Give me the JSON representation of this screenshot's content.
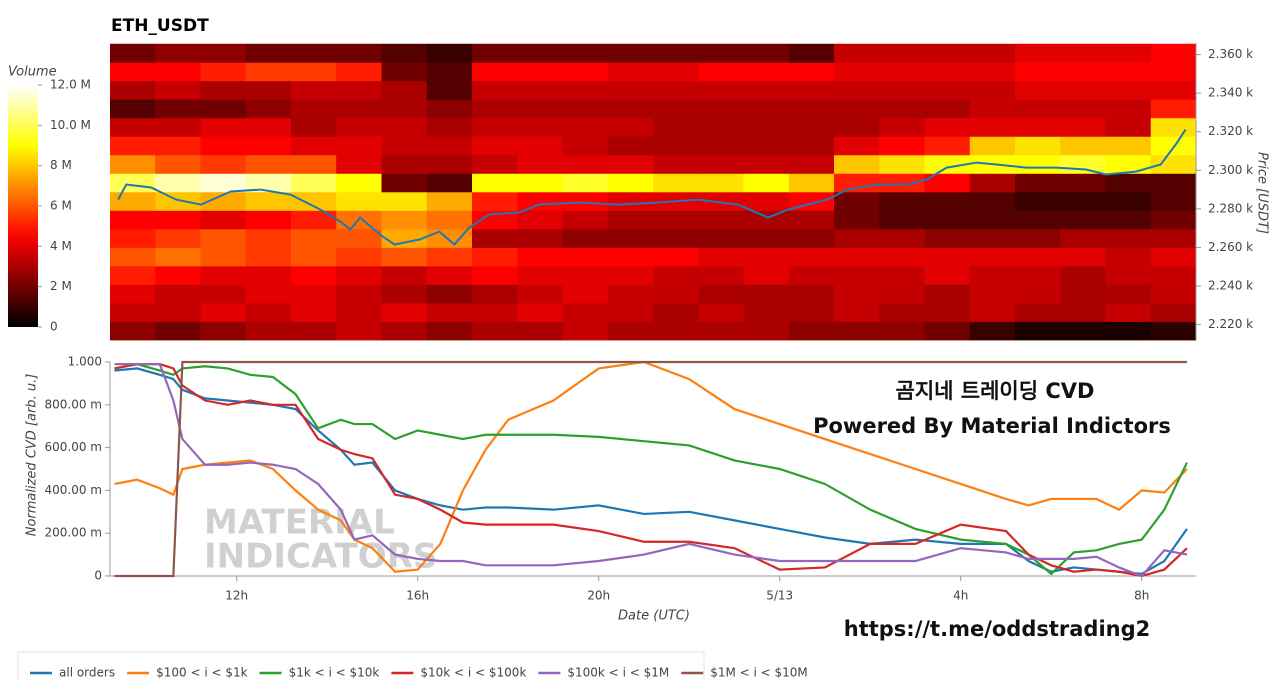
{
  "chart_data": [
    {
      "type": "heatmap",
      "title": "ETH_USDT",
      "y_label": "Price [USDT]",
      "colormap": "hot",
      "xlim": [
        9.2,
        33.2
      ],
      "ylim": [
        2212,
        2366
      ],
      "yticks": [
        {
          "value": 2220,
          "label": "2.220 k"
        },
        {
          "value": 2240,
          "label": "2.240 k"
        },
        {
          "value": 2260,
          "label": "2.260 k"
        },
        {
          "value": 2280,
          "label": "2.280 k"
        },
        {
          "value": 2300,
          "label": "2.300 k"
        },
        {
          "value": 2320,
          "label": "2.320 k"
        },
        {
          "value": 2340,
          "label": "2.340 k"
        },
        {
          "value": 2360,
          "label": "2.360 k"
        }
      ],
      "x_bins": [
        9.2,
        10.2,
        11.2,
        12.2,
        13.2,
        14.2,
        15.2,
        16.2,
        17.2,
        18.2,
        19.2,
        20.2,
        21.2,
        22.2,
        23.2,
        24.2,
        25.2,
        26.2,
        27.2,
        28.2,
        29.2,
        30.2,
        31.2,
        32.2,
        33.2
      ],
      "y_bins": [
        2212.0,
        2221.6,
        2231.2,
        2240.8,
        2250.4,
        2260.0,
        2269.6,
        2279.2,
        2288.8,
        2298.4,
        2308.0,
        2317.6,
        2327.2,
        2336.8,
        2346.4,
        2356.0,
        2365.6
      ],
      "colorbar": {
        "label": "Volume",
        "lim": [
          0,
          12
        ],
        "ticks": [
          0,
          {
            "value": 2,
            "label": "2 M"
          },
          {
            "value": 4,
            "label": "4 M"
          },
          {
            "value": 6,
            "label": "6 M"
          },
          {
            "value": 8,
            "label": "8 M"
          },
          {
            "value": 10,
            "label": "10.0 M"
          },
          {
            "value": 12,
            "label": "12.0 M"
          }
        ]
      },
      "z": [
        [
          2.5,
          2,
          2.5,
          3,
          3,
          3.5,
          3,
          2.5,
          3,
          3,
          3.5,
          3,
          3,
          3,
          3,
          2.5,
          2.5,
          2.5,
          2,
          1,
          0.5,
          0.5,
          0.5,
          0.8
        ],
        [
          3.5,
          3.5,
          4,
          3.5,
          4,
          3.5,
          4,
          3.5,
          3.5,
          4,
          3.5,
          3.5,
          3,
          3.5,
          3,
          3,
          3.5,
          3,
          3,
          3.5,
          3,
          3,
          3.5,
          3
        ],
        [
          4,
          3.5,
          3.5,
          4,
          4,
          3.5,
          3,
          2.5,
          3,
          3.5,
          4,
          3.5,
          3.5,
          3,
          3,
          3,
          3.5,
          3.5,
          3,
          3.5,
          3.5,
          3,
          3,
          3.5
        ],
        [
          5,
          4.5,
          4,
          4,
          4.5,
          4,
          3.5,
          4,
          4.5,
          4,
          4,
          4,
          3.5,
          3.5,
          4,
          3.5,
          3.5,
          3.5,
          4,
          3.5,
          3.5,
          3,
          3.5,
          3.5
        ],
        [
          6,
          6.5,
          6,
          5.5,
          6,
          5.5,
          6,
          5.5,
          5,
          4.5,
          4.5,
          4.5,
          4.5,
          4,
          4,
          4,
          4,
          4,
          4,
          4,
          4,
          4,
          3.5,
          4
        ],
        [
          5,
          5.5,
          6,
          5.5,
          6,
          6,
          7.5,
          7,
          3,
          3,
          2.5,
          2.5,
          2.5,
          2.5,
          2.5,
          2.5,
          3,
          3,
          2.5,
          2.5,
          2.5,
          3,
          3,
          3
        ],
        [
          4.5,
          4.5,
          4,
          4.5,
          5,
          6.5,
          7,
          6.5,
          4.5,
          4,
          3.5,
          3,
          3,
          3,
          3,
          3,
          2,
          1.5,
          1.5,
          1.5,
          1.5,
          1.5,
          1.5,
          2
        ],
        [
          7.5,
          8,
          7.5,
          8,
          8,
          8.5,
          8.5,
          7.5,
          5,
          4.5,
          4.5,
          4,
          4,
          4,
          4,
          4.5,
          2,
          1.5,
          1.5,
          1.5,
          1,
          1,
          1,
          1.5
        ],
        [
          10,
          11,
          11.5,
          11,
          10,
          9,
          2,
          1.5,
          9,
          9,
          9.5,
          9,
          8.5,
          8.5,
          9,
          8,
          5,
          5,
          4.5,
          3,
          2,
          2,
          1.5,
          1.5
        ],
        [
          7,
          6,
          5.5,
          6,
          6,
          4,
          3,
          3,
          3.5,
          4,
          4,
          4,
          3.5,
          3.5,
          3.5,
          3.5,
          8,
          8.5,
          9,
          9,
          9,
          9.5,
          9,
          8.5
        ],
        [
          5,
          5,
          4.5,
          4.5,
          4,
          4,
          3.5,
          3.5,
          4,
          4,
          3.5,
          3,
          3,
          3,
          3,
          3,
          4,
          4.5,
          5,
          8,
          8.5,
          8,
          8,
          9
        ],
        [
          3.5,
          3.5,
          4,
          4,
          3,
          3.5,
          3.5,
          3,
          3.5,
          3.5,
          3.5,
          3.5,
          3,
          3,
          3,
          3,
          3,
          3.5,
          4,
          4,
          4,
          4,
          3.5,
          8.5
        ],
        [
          1.5,
          2,
          2,
          2.5,
          3,
          3,
          3,
          2.5,
          3,
          3,
          3,
          3,
          3,
          3,
          3,
          3,
          3,
          3,
          3,
          3.5,
          3.5,
          3.5,
          3.5,
          5
        ],
        [
          3,
          3.5,
          3,
          3,
          3.5,
          3.5,
          3,
          1.5,
          3.5,
          3.5,
          3.5,
          3.5,
          3.5,
          3.5,
          3.5,
          3.5,
          3.5,
          3.5,
          3.5,
          3.5,
          4,
          4,
          4,
          4
        ],
        [
          4.5,
          4.5,
          5,
          5.5,
          5.5,
          5,
          2,
          1.5,
          4.5,
          4.5,
          4.5,
          4,
          4,
          4.5,
          4.5,
          4.5,
          4,
          4,
          4,
          4,
          4.5,
          4.5,
          4.5,
          4.5
        ],
        [
          2,
          2.5,
          2.5,
          2,
          2,
          2,
          1.5,
          1,
          2,
          2,
          2,
          2,
          2,
          2,
          2,
          1.5,
          3.5,
          3.5,
          3.5,
          3.5,
          4,
          4,
          4,
          4.5
        ]
      ],
      "line": {
        "color": "#1f77b4",
        "x": [
          9.38,
          9.56,
          10.11,
          10.66,
          11.21,
          11.87,
          12.53,
          13.19,
          13.85,
          14.29,
          14.51,
          14.73,
          15.16,
          15.49,
          16.04,
          16.48,
          16.81,
          17.14,
          17.58,
          18.24,
          18.68,
          19.56,
          20.44,
          21.32,
          22.2,
          23.08,
          23.74,
          24.18,
          24.62,
          25.05,
          25.49,
          26.15,
          26.81,
          27.25,
          27.69,
          28.35,
          28.79,
          29.45,
          30.11,
          30.77,
          31.21,
          31.87,
          32.42,
          32.75,
          32.97
        ],
        "values": [
          2284.8,
          2292.6,
          2291.1,
          2284.8,
          2282.2,
          2289.0,
          2290.0,
          2287.4,
          2279.6,
          2273.4,
          2269.3,
          2275.5,
          2266.7,
          2261.5,
          2264.1,
          2268.2,
          2261.5,
          2270.3,
          2277.1,
          2278.1,
          2282.2,
          2283.3,
          2282.2,
          2283.3,
          2284.8,
          2282.2,
          2275.5,
          2279.6,
          2282.2,
          2284.8,
          2290.0,
          2292.6,
          2292.6,
          2295.2,
          2301.4,
          2304.0,
          2303.0,
          2301.4,
          2301.4,
          2300.4,
          2297.8,
          2299.3,
          2303.0,
          2313.3,
          2321.1
        ]
      }
    },
    {
      "type": "line",
      "y_label": "Normalized CVD [arb. u.]",
      "x_label": "Date (UTC)",
      "xlim": [
        9.2,
        33.2
      ],
      "ylim": [
        0,
        1
      ],
      "xticks": [
        {
          "value": 12,
          "label": "12h"
        },
        {
          "value": 16,
          "label": "16h"
        },
        {
          "value": 20,
          "label": "20h"
        },
        {
          "value": 24,
          "label": "5/13"
        },
        {
          "value": 28,
          "label": "4h"
        },
        {
          "value": 32,
          "label": "8h"
        }
      ],
      "yticks": [
        0,
        {
          "value": 0.2,
          "label": "200.00 m"
        },
        {
          "value": 0.4,
          "label": "400.00 m"
        },
        {
          "value": 0.6,
          "label": "600.00 m"
        },
        {
          "value": 0.8,
          "label": "800.00 m"
        },
        {
          "value": 1,
          "label": "1.000"
        }
      ],
      "x": [
        9.3,
        9.8,
        10.3,
        10.6,
        10.8,
        11.3,
        11.8,
        12.3,
        12.8,
        13.3,
        13.8,
        14.3,
        14.6,
        15.0,
        15.5,
        16.0,
        16.5,
        17.0,
        17.5,
        18,
        19,
        20,
        21,
        22,
        23,
        24,
        25,
        26,
        27,
        28,
        29,
        29.5,
        30,
        30.5,
        31,
        31.5,
        32,
        32.5,
        33
      ],
      "series": [
        {
          "name": "all orders",
          "color": "#1f77b4",
          "values": [
            0.96,
            0.97,
            0.94,
            0.92,
            0.87,
            0.83,
            0.82,
            0.81,
            0.8,
            0.78,
            0.68,
            0.59,
            0.52,
            0.53,
            0.4,
            0.36,
            0.33,
            0.31,
            0.32,
            0.32,
            0.31,
            0.33,
            0.29,
            0.3,
            0.26,
            0.22,
            0.18,
            0.15,
            0.17,
            0.15,
            0.15,
            0.07,
            0.02,
            0.04,
            0.03,
            0.02,
            0.01,
            0.07,
            0.22
          ]
        },
        {
          "name": "$100 < i < $1k",
          "color": "#ff7f0e",
          "values": [
            0.43,
            0.45,
            0.41,
            0.38,
            0.5,
            0.52,
            0.53,
            0.54,
            0.5,
            0.4,
            0.31,
            0.26,
            0.17,
            0.13,
            0.02,
            0.03,
            0.15,
            0.4,
            0.59,
            0.73,
            0.82,
            0.97,
            1.0,
            0.92,
            0.78,
            0.71,
            0.64,
            0.57,
            0.5,
            0.43,
            0.36,
            0.33,
            0.36,
            0.36,
            0.36,
            0.31,
            0.4,
            0.39,
            0.5
          ]
        },
        {
          "name": "$1k < i < $10k",
          "color": "#2ca02c",
          "values": [
            0.97,
            0.99,
            0.96,
            0.94,
            0.97,
            0.98,
            0.97,
            0.94,
            0.93,
            0.85,
            0.69,
            0.73,
            0.71,
            0.71,
            0.64,
            0.68,
            0.66,
            0.64,
            0.66,
            0.66,
            0.66,
            0.65,
            0.63,
            0.61,
            0.54,
            0.5,
            0.43,
            0.31,
            0.22,
            0.17,
            0.15,
            0.1,
            0.01,
            0.11,
            0.12,
            0.15,
            0.17,
            0.31,
            0.53
          ]
        },
        {
          "name": "$10k < i < $100k",
          "color": "#d62728",
          "values": [
            0.97,
            0.99,
            0.99,
            0.97,
            0.89,
            0.82,
            0.8,
            0.82,
            0.8,
            0.8,
            0.64,
            0.59,
            0.57,
            0.55,
            0.38,
            0.36,
            0.31,
            0.25,
            0.24,
            0.24,
            0.24,
            0.21,
            0.16,
            0.16,
            0.13,
            0.03,
            0.04,
            0.15,
            0.15,
            0.24,
            0.21,
            0.1,
            0.05,
            0.02,
            0.03,
            0.02,
            0.0,
            0.03,
            0.13
          ]
        },
        {
          "name": "$100k < i < $1M",
          "color": "#9467bd",
          "values": [
            0.99,
            0.99,
            0.99,
            0.82,
            0.64,
            0.52,
            0.52,
            0.53,
            0.52,
            0.5,
            0.43,
            0.31,
            0.17,
            0.19,
            0.1,
            0.08,
            0.07,
            0.07,
            0.05,
            0.05,
            0.05,
            0.07,
            0.1,
            0.15,
            0.1,
            0.07,
            0.07,
            0.07,
            0.07,
            0.13,
            0.11,
            0.08,
            0.08,
            0.08,
            0.09,
            0.04,
            0.0,
            0.12,
            0.1
          ]
        },
        {
          "name": "$1M < i < $10M",
          "color": "#8c564b",
          "values": [
            0,
            0,
            0,
            0,
            1,
            1,
            1,
            1,
            1,
            1,
            1,
            1,
            1,
            1,
            1,
            1,
            1,
            1,
            1,
            1,
            1,
            1,
            1,
            1,
            1,
            1,
            1,
            1,
            1,
            1,
            1,
            1,
            1,
            1,
            1,
            1,
            1,
            1,
            1
          ]
        }
      ],
      "annotations": [
        "곰지네 트레이딩 CVD",
        "Powered By Material Indictors",
        "https://t.me/oddstrading2"
      ],
      "watermark": [
        "MATERIAL",
        "INDICATORS"
      ]
    }
  ]
}
